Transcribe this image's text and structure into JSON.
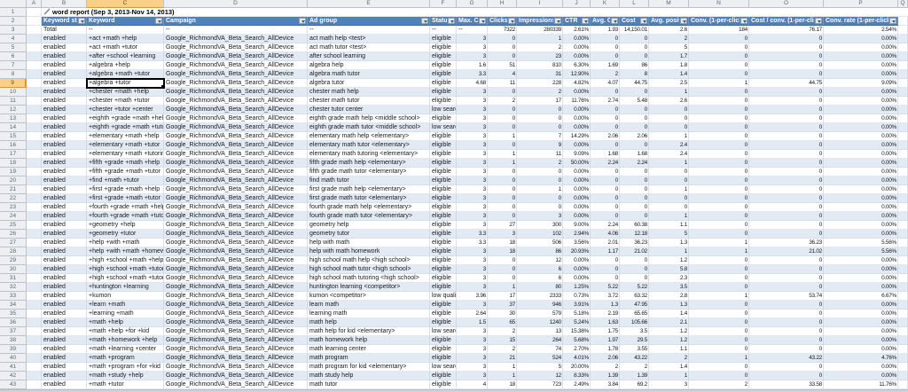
{
  "sheet": {
    "column_letters": [
      "A",
      "B",
      "C",
      "D",
      "E",
      "F",
      "G",
      "H",
      "I",
      "J",
      "K",
      "L",
      "M",
      "N",
      "O",
      "P",
      "Q"
    ],
    "visible_row_numbers": "1-43",
    "title": {
      "icon": "pencil-icon",
      "text": "word report (Sep 3, 2013-Nov 14, 2013)"
    },
    "selection": {
      "active_cell_column": "C",
      "active_cell_row": 9,
      "active_cell_value": "+algebra +tutor"
    }
  },
  "table": {
    "headers": [
      "Keyword state",
      "Keyword",
      "Campaign",
      "Ad group",
      "Status",
      "Max. CPC",
      "Clicks",
      "Impressions",
      "CTR",
      "Avg. CPC",
      "Cost",
      "Avg. position",
      "Conv. (1-per-click)",
      "Cost / conv. (1-per-click)",
      "Conv. rate (1-per-click)"
    ],
    "total_row": [
      "Total",
      "--",
      "--",
      "--",
      "--",
      "--",
      "7322",
      "280339",
      "2.61%",
      "1.93",
      "14,150.01",
      "2.6",
      "184",
      "76.17",
      "2.54%"
    ],
    "rows": [
      [
        "enabled",
        "+act +math +help",
        "Google_RichmondVA_Beta_Search_AllDevice",
        "act math help <test>",
        "eligible",
        "3",
        "0",
        "1",
        "0.00%",
        "0",
        "0",
        "2",
        "0",
        "0",
        "0.00%"
      ],
      [
        "enabled",
        "+act +math +tutor",
        "Google_RichmondVA_Beta_Search_AllDevice",
        "act math tutor <test>",
        "eligible",
        "3",
        "0",
        "2",
        "0.00%",
        "0",
        "0",
        "5",
        "0",
        "0",
        "0.00%"
      ],
      [
        "enabled",
        "+after +school +learning",
        "Google_RichmondVA_Beta_Search_AllDevice",
        "after school learning",
        "eligible",
        "3",
        "0",
        "23",
        "0.00%",
        "0",
        "0",
        "1.7",
        "0",
        "0",
        "0.00%"
      ],
      [
        "enabled",
        "+algebra +help",
        "Google_RichmondVA_Beta_Search_AllDevice",
        "algebra help",
        "eligible",
        "1.6",
        "51",
        "810",
        "6.30%",
        "1.69",
        "86",
        "1.8",
        "0",
        "0",
        "0.00%"
      ],
      [
        "enabled",
        "+algebra +math +tutor",
        "Google_RichmondVA_Beta_Search_AllDevice",
        "algebra math tutor",
        "eligible",
        "3.3",
        "4",
        "31",
        "12.90%",
        "2",
        "8",
        "1.4",
        "0",
        "0",
        "0.00%"
      ],
      [
        "enabled",
        "+algebra +tutor",
        "Google_RichmondVA_Beta_Search_AllDevice",
        "algebra tutor",
        "eligible",
        "4.68",
        "11",
        "228",
        "4.82%",
        "4.07",
        "44.75",
        "2.5",
        "1",
        "44.75",
        "9.09%"
      ],
      [
        "enabled",
        "+chester +math +help",
        "Google_RichmondVA_Beta_Search_AllDevice",
        "chester math help",
        "eligible",
        "3",
        "0",
        "2",
        "0.00%",
        "0",
        "0",
        "1",
        "0",
        "0",
        "0.00%"
      ],
      [
        "enabled",
        "+chester +math +tutor",
        "Google_RichmondVA_Beta_Search_AllDevice",
        "chester math tutor",
        "eligible",
        "3",
        "2",
        "17",
        "11.76%",
        "2.74",
        "5.48",
        "2.6",
        "0",
        "0",
        "0.00%"
      ],
      [
        "enabled",
        "+chester +tutor +center",
        "Google_RichmondVA_Beta_Search_AllDevice",
        "chester tutor center",
        "low searc",
        "3",
        "0",
        "0",
        "0.00%",
        "0",
        "0",
        "0",
        "0",
        "0",
        "0.00%"
      ],
      [
        "enabled",
        "+eighth +grade +math +help",
        "Google_RichmondVA_Beta_Search_AllDevice",
        "eighth grade math help <middle school>",
        "eligible",
        "3",
        "0",
        "0",
        "0.00%",
        "0",
        "0",
        "0",
        "0",
        "0",
        "0.00%"
      ],
      [
        "enabled",
        "+eighth +grade +math +tutor",
        "Google_RichmondVA_Beta_Search_AllDevice",
        "eighth grade math tutor <middle school>",
        "low searc",
        "3",
        "0",
        "0",
        "0.00%",
        "0",
        "0",
        "0",
        "0",
        "0",
        "0.00%"
      ],
      [
        "enabled",
        "+elementary +math +help",
        "Google_RichmondVA_Beta_Search_AllDevice",
        "elementary math help <elementary>",
        "eligible",
        "3",
        "1",
        "7",
        "14.29%",
        "2.06",
        "2.06",
        "1",
        "0",
        "0",
        "0.00%"
      ],
      [
        "enabled",
        "+elementary +math +tutor",
        "Google_RichmondVA_Beta_Search_AllDevice",
        "elementary math tutor <elementary>",
        "eligible",
        "3",
        "0",
        "9",
        "0.00%",
        "0",
        "0",
        "2.4",
        "0",
        "0",
        "0.00%"
      ],
      [
        "enabled",
        "+elementary +math +tutoring",
        "Google_RichmondVA_Beta_Search_AllDevice",
        "elementary math tutoring <elementary>",
        "eligible",
        "3",
        "1",
        "11",
        "9.09%",
        "1.68",
        "1.68",
        "2.4",
        "0",
        "0",
        "0.00%"
      ],
      [
        "enabled",
        "+fifth +grade +math +help",
        "Google_RichmondVA_Beta_Search_AllDevice",
        "fifth grade math help <elementary>",
        "eligible",
        "3",
        "1",
        "2",
        "50.00%",
        "2.24",
        "2.24",
        "1",
        "0",
        "0",
        "0.00%"
      ],
      [
        "enabled",
        "+fifth +grade +math +tutor",
        "Google_RichmondVA_Beta_Search_AllDevice",
        "fifth grade math tutor <elementary>",
        "eligible",
        "3",
        "0",
        "0",
        "0.00%",
        "0",
        "0",
        "0",
        "0",
        "0",
        "0.00%"
      ],
      [
        "enabled",
        "+find +math +tutor",
        "Google_RichmondVA_Beta_Search_AllDevice",
        "find math tutor",
        "eligible",
        "3",
        "0",
        "0",
        "0.00%",
        "0",
        "0",
        "0",
        "0",
        "0",
        "0.00%"
      ],
      [
        "enabled",
        "+first +grade +math +help",
        "Google_RichmondVA_Beta_Search_AllDevice",
        "first grade math help <elementary>",
        "eligible",
        "3",
        "0",
        "1",
        "0.00%",
        "0",
        "0",
        "1",
        "0",
        "0",
        "0.00%"
      ],
      [
        "enabled",
        "+first +grade +math +tutor",
        "Google_RichmondVA_Beta_Search_AllDevice",
        "first grade math tutor <elementary>",
        "eligible",
        "3",
        "0",
        "0",
        "0.00%",
        "0",
        "0",
        "0",
        "0",
        "0",
        "0.00%"
      ],
      [
        "enabled",
        "+fourth +grade +math +help",
        "Google_RichmondVA_Beta_Search_AllDevice",
        "fourth grade math help <elementary>",
        "eligible",
        "3",
        "0",
        "0",
        "0.00%",
        "0",
        "0",
        "0",
        "0",
        "0",
        "0.00%"
      ],
      [
        "enabled",
        "+fourth +grade +math +tutor",
        "Google_RichmondVA_Beta_Search_AllDevice",
        "fourth grade math tutor <elementary>",
        "eligible",
        "3",
        "0",
        "3",
        "0.00%",
        "0",
        "0",
        "1",
        "0",
        "0",
        "0.00%"
      ],
      [
        "enabled",
        "+geometry +help",
        "Google_RichmondVA_Beta_Search_AllDevice",
        "geometry help",
        "eligible",
        "3",
        "27",
        "300",
        "9.00%",
        "2.24",
        "60.38",
        "1.1",
        "0",
        "0",
        "0.00%"
      ],
      [
        "enabled",
        "+geometry +tutor",
        "Google_RichmondVA_Beta_Search_AllDevice",
        "geometry tutor",
        "eligible",
        "3.3",
        "3",
        "102",
        "2.94%",
        "4.06",
        "12.18",
        "5",
        "0",
        "0",
        "0.00%"
      ],
      [
        "enabled",
        "+help +with +math",
        "Google_RichmondVA_Beta_Search_AllDevice",
        "help with math",
        "eligible",
        "3.3",
        "18",
        "506",
        "3.56%",
        "2.01",
        "36.23",
        "1.3",
        "1",
        "36.23",
        "5.56%"
      ],
      [
        "enabled",
        "+help +with +math +homework",
        "Google_RichmondVA_Beta_Search_AllDevice",
        "help with math homework",
        "eligible",
        "3",
        "18",
        "86",
        "20.93%",
        "1.17",
        "21.02",
        "1",
        "1",
        "21.02",
        "5.56%"
      ],
      [
        "enabled",
        "+high +school +math +help",
        "Google_RichmondVA_Beta_Search_AllDevice",
        "high school math help <high school>",
        "eligible",
        "3",
        "0",
        "12",
        "0.00%",
        "0",
        "0",
        "1.2",
        "0",
        "0",
        "0.00%"
      ],
      [
        "enabled",
        "+high +school +math +tutor",
        "Google_RichmondVA_Beta_Search_AllDevice",
        "high school math tutor <high school>",
        "eligible",
        "3",
        "0",
        "6",
        "0.00%",
        "0",
        "0",
        "5.8",
        "0",
        "0",
        "0.00%"
      ],
      [
        "enabled",
        "+high +school +math +tutoring",
        "Google_RichmondVA_Beta_Search_AllDevice",
        "high school math tutoring <high school>",
        "eligible",
        "3",
        "0",
        "6",
        "0.00%",
        "0",
        "0",
        "2.3",
        "0",
        "0",
        "0.00%"
      ],
      [
        "enabled",
        "+huntington +learning",
        "Google_RichmondVA_Beta_Search_AllDevice",
        "huntington learning <competitor>",
        "eligible",
        "3",
        "1",
        "80",
        "1.25%",
        "5.22",
        "5.22",
        "3.5",
        "0",
        "0",
        "0.00%"
      ],
      [
        "enabled",
        "+kumon",
        "Google_RichmondVA_Beta_Search_AllDevice",
        "kumon <competitor>",
        "low quali",
        "3.96",
        "17",
        "2333",
        "0.73%",
        "3.72",
        "63.32",
        "2.8",
        "1",
        "53.74",
        "6.67%"
      ],
      [
        "enabled",
        "+learn +math",
        "Google_RichmondVA_Beta_Search_AllDevice",
        "learn math",
        "eligible",
        "3",
        "37",
        "946",
        "3.91%",
        "1.3",
        "47.95",
        "1.3",
        "0",
        "0",
        "0.00%"
      ],
      [
        "enabled",
        "+learning +math",
        "Google_RichmondVA_Beta_Search_AllDevice",
        "learning math",
        "eligible",
        "2.64",
        "30",
        "579",
        "5.18%",
        "2.19",
        "65.65",
        "1.4",
        "0",
        "0",
        "0.00%"
      ],
      [
        "enabled",
        "+math +help",
        "Google_RichmondVA_Beta_Search_AllDevice",
        "math help",
        "eligible",
        "1.5",
        "65",
        "1240",
        "5.24%",
        "1.63",
        "105.66",
        "2.1",
        "0",
        "0",
        "0.00%"
      ],
      [
        "enabled",
        "+math +help +for +kid",
        "Google_RichmondVA_Beta_Search_AllDevice",
        "math help for kid <elementary>",
        "low searc",
        "3",
        "2",
        "13",
        "15.38%",
        "1.75",
        "3.5",
        "1.2",
        "0",
        "0",
        "0.00%"
      ],
      [
        "enabled",
        "+math +homework +help",
        "Google_RichmondVA_Beta_Search_AllDevice",
        "math homework help",
        "eligible",
        "3",
        "15",
        "264",
        "5.68%",
        "1.97",
        "29.5",
        "1.2",
        "0",
        "0",
        "0.00%"
      ],
      [
        "enabled",
        "+math +learning +center",
        "Google_RichmondVA_Beta_Search_AllDevice",
        "math learning center",
        "eligible",
        "3",
        "2",
        "74",
        "2.70%",
        "1.78",
        "3.55",
        "1.1",
        "0",
        "0",
        "0.00%"
      ],
      [
        "enabled",
        "+math +program",
        "Google_RichmondVA_Beta_Search_AllDevice",
        "math program",
        "eligible",
        "3",
        "21",
        "524",
        "4.01%",
        "2.06",
        "43.22",
        "2",
        "1",
        "43.22",
        "4.76%"
      ],
      [
        "enabled",
        "+math +program +for +kid",
        "Google_RichmondVA_Beta_Search_AllDevice",
        "math program for kid <elementary>",
        "low searc",
        "3",
        "1",
        "5",
        "20.00%",
        "2",
        "2",
        "1.4",
        "0",
        "0",
        "0.00%"
      ],
      [
        "enabled",
        "+math +study +help",
        "Google_RichmondVA_Beta_Search_AllDevice",
        "math study help",
        "eligible",
        "3",
        "1",
        "12",
        "8.33%",
        "1.39",
        "1.39",
        "1",
        "0",
        "0",
        "0.00%"
      ],
      [
        "enabled",
        "+math +tutor",
        "Google_RichmondVA_Beta_Search_AllDevice",
        "math tutor",
        "eligible",
        "4",
        "18",
        "723",
        "2.49%",
        "3.84",
        "69.2",
        "3",
        "2",
        "33.58",
        "11.76%"
      ]
    ]
  },
  "colors": {
    "table_header_bg": "#4f81bd",
    "table_header_text": "#ffffff",
    "banded_row_bg": "#e2eaf4",
    "heading_strip_bg": "#edeff2",
    "selected_heading_bg": "#fad089",
    "selection_border": "#000000"
  }
}
